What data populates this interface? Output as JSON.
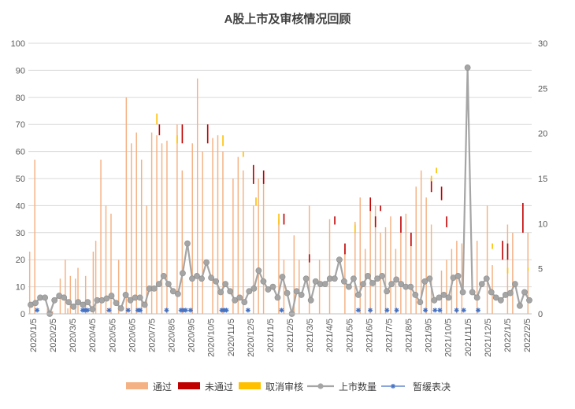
{
  "chart_data": {
    "type": "bar",
    "title": "A股上市及审核情况回顾",
    "y_left": {
      "min": 0,
      "max": 100,
      "step": 10
    },
    "y_right": {
      "min": 0,
      "max": 30,
      "step": 5
    },
    "x_labels": [
      "2020/1/5",
      "2020/2/5",
      "2020/3/5",
      "2020/4/5",
      "2020/5/5",
      "2020/6/5",
      "2020/7/5",
      "2020/8/5",
      "2020/9/5",
      "2020/10/5",
      "2020/11/5",
      "2020/12/5",
      "2021/1/5",
      "2021/2/5",
      "2021/3/5",
      "2021/4/5",
      "2021/5/5",
      "2021/6/5",
      "2021/7/5",
      "2021/8/5",
      "2021/9/5",
      "2021/10/5",
      "2021/11/5",
      "2021/12/5",
      "2022/1/5",
      "2022/2/5"
    ],
    "grid": true,
    "legend_position": "bottom",
    "colors": {
      "passed": "#F4B183",
      "rejected": "#C00000",
      "cancelled": "#FFC000",
      "listings": "#A5A5A5",
      "suspended": "#4472C4",
      "grid": "#D9D9D9",
      "axis_text": "#595959"
    },
    "series": [
      {
        "name": "通过",
        "axis": "left",
        "values": [
          23,
          0,
          57,
          0,
          0,
          0,
          0,
          2,
          0,
          1,
          0,
          0,
          13,
          0,
          20,
          2,
          14,
          0,
          13,
          17,
          0,
          0,
          14,
          0,
          0,
          23,
          27,
          0,
          57,
          0,
          40,
          0,
          37,
          0,
          0,
          20,
          0,
          0,
          80,
          0,
          63,
          0,
          67,
          0,
          57,
          0,
          40,
          0,
          67,
          0,
          66,
          0,
          63,
          0,
          64,
          0,
          0,
          0,
          70,
          0,
          53,
          0,
          0,
          0,
          63,
          0,
          87,
          0,
          60,
          0,
          0,
          0,
          65,
          0,
          66,
          0,
          60,
          0,
          0,
          0,
          50,
          0,
          58,
          0,
          53,
          0,
          0,
          0,
          40,
          0,
          50,
          0,
          50,
          0,
          0,
          0,
          0,
          0,
          35,
          0,
          20,
          0,
          0,
          0,
          29,
          0,
          20,
          0,
          0,
          0,
          40,
          0,
          0,
          0,
          20,
          0,
          0,
          0,
          35,
          0,
          0,
          0,
          0,
          0,
          24,
          0,
          0,
          0,
          34,
          0,
          43,
          0,
          24,
          0,
          38,
          0,
          40,
          0,
          30,
          0,
          32,
          0,
          36,
          0,
          24,
          0,
          30,
          0,
          37,
          0,
          30,
          0,
          47,
          0,
          53,
          0,
          43,
          0,
          33,
          0,
          0,
          0,
          16,
          0,
          20,
          0,
          24,
          0,
          27,
          0,
          26,
          0,
          0,
          0,
          0,
          0,
          27,
          0,
          0,
          0,
          40,
          0,
          18,
          0,
          0,
          0,
          0,
          0,
          33,
          0,
          30,
          0,
          0,
          0,
          0,
          0,
          30,
          0
        ]
      },
      {
        "name": "未通过",
        "axis": "left",
        "values": []
      },
      {
        "name": "取消审核",
        "axis": "left",
        "values": []
      },
      {
        "name": "上市数量",
        "axis": "right",
        "values": [
          1,
          1.2,
          1.8,
          1.8,
          0,
          1.5,
          2,
          1.8,
          1.3,
          0.8,
          1.3,
          1,
          1.3,
          0.5,
          1.5,
          1.5,
          1.7,
          2,
          1.2,
          0.6,
          2.1,
          1.5,
          1.8,
          1.8,
          1,
          2.8,
          2.8,
          3.3,
          4.2,
          3.3,
          2.5,
          2.2,
          4.5,
          7.8,
          3.9,
          4.2,
          3.9,
          5.7,
          4,
          3.6,
          2.4,
          3.3,
          2.5,
          1.5,
          1.8,
          1.3,
          2.5,
          2.8,
          4.8,
          3.6,
          2.7,
          3,
          1.8,
          4.1,
          2.3,
          0,
          2.5,
          2.1,
          3.9,
          1.5,
          3.6,
          3.3,
          3.3,
          3.9,
          3.9,
          6,
          3.6,
          3,
          3.9,
          2.1,
          3.3,
          4.2,
          3.4,
          3.9,
          4.2,
          2.5,
          3.3,
          3.8,
          3.3,
          3,
          3,
          2.1,
          1.3,
          3.6,
          3.9,
          1.5,
          1.8,
          2.1,
          1.8,
          4,
          4.2,
          2.4,
          27.3,
          2.4,
          1.8,
          3.3,
          3.9,
          2.4,
          1.8,
          1.5,
          2.1,
          2.3,
          3.3,
          0.9,
          2.4,
          1.5
        ]
      },
      {
        "name": "暂缓表决",
        "axis": "right",
        "values": []
      }
    ]
  }
}
